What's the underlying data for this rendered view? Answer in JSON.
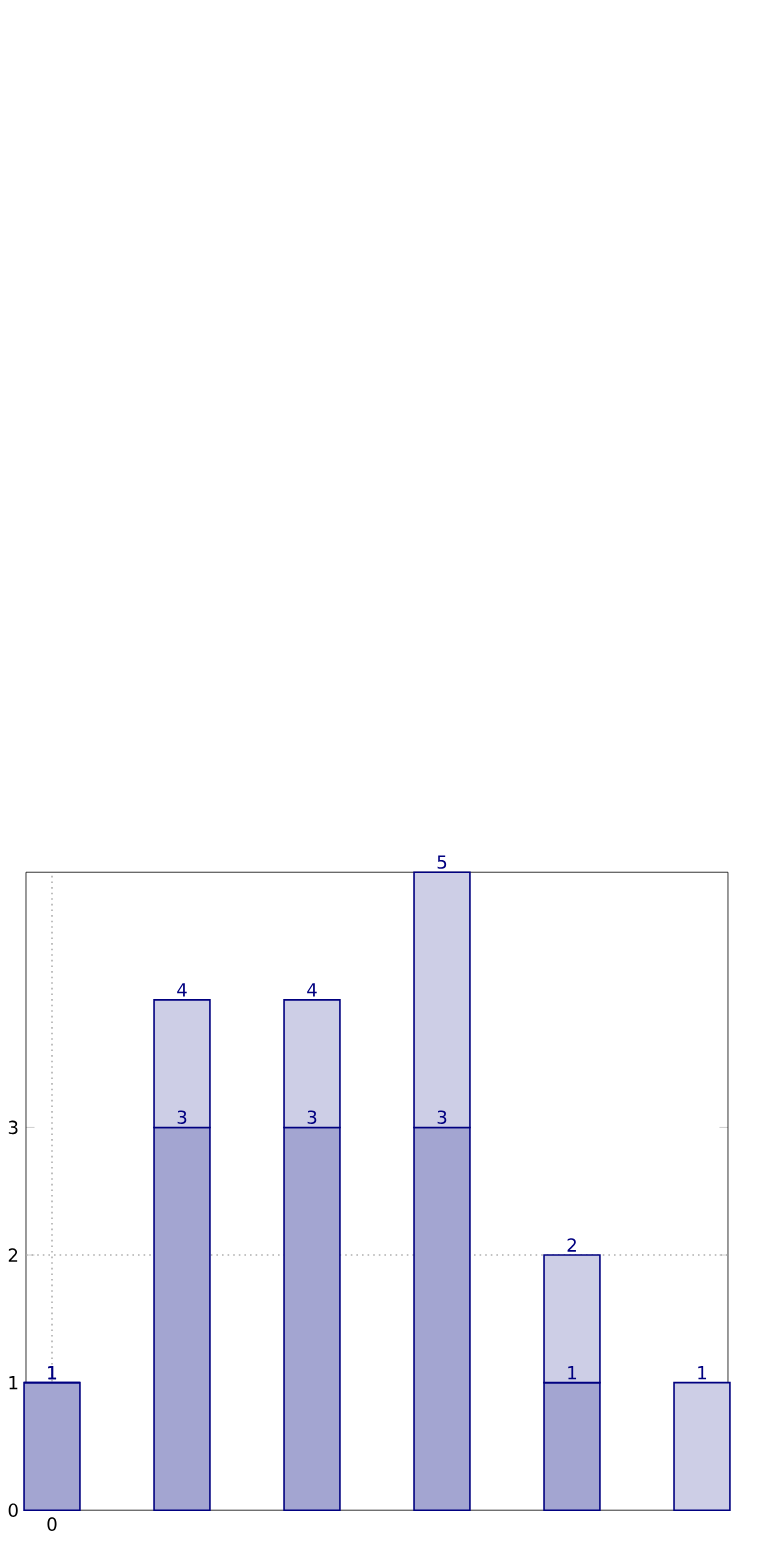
{
  "chart_data": {
    "type": "bar",
    "stacked": true,
    "categories": [
      "0",
      null,
      null,
      null,
      null,
      null
    ],
    "series": [
      {
        "color": "#a3a5d1",
        "values": [
          1,
          3,
          3,
          3,
          1,
          0
        ],
        "value_labels": [
          "1",
          "3",
          "3",
          "3",
          "1",
          null
        ]
      },
      {
        "color": "#cdcee6",
        "values": [
          0,
          1,
          1,
          2,
          1,
          1
        ]
      }
    ],
    "totals": [
      "1",
      "4",
      "4",
      "5",
      "2",
      "1"
    ],
    "ylim": [
      0,
      5
    ],
    "yticks": [
      0,
      1,
      2,
      3
    ],
    "ref_lines": [
      {
        "axis": "x",
        "value": "0",
        "color": "#b0b0b0",
        "line_style": "dotted"
      },
      {
        "axis": "y",
        "value": 2,
        "color": "#b0b0b0",
        "line_style": "dotted"
      }
    ]
  }
}
